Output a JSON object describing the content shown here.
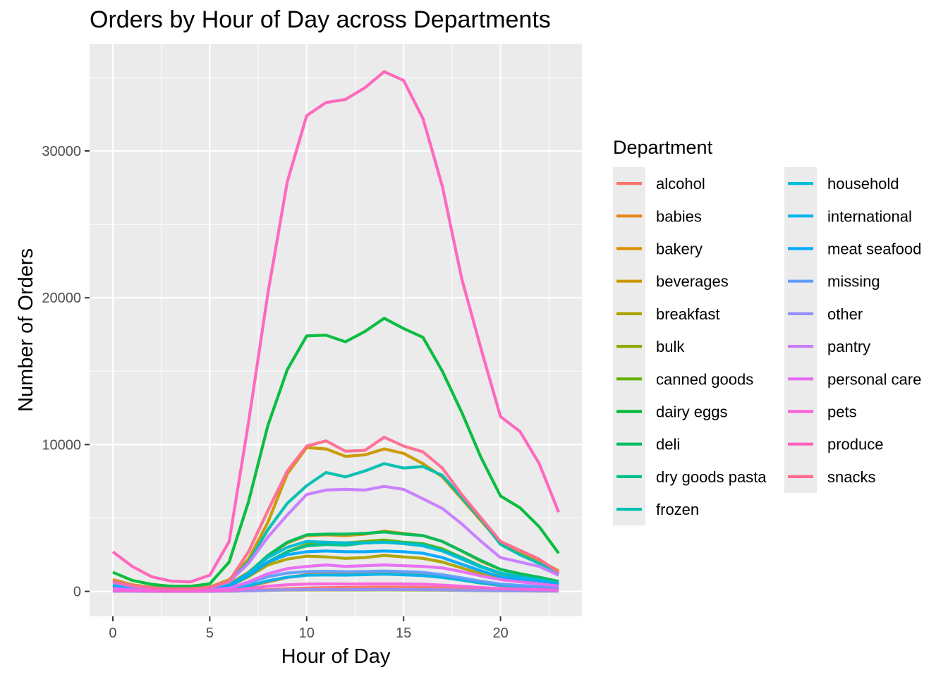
{
  "chart_data": {
    "type": "line",
    "title": "Orders by Hour of Day across Departments",
    "xlabel": "Hour of Day",
    "ylabel": "Number of Orders",
    "xlim": [
      -1.2,
      24.2
    ],
    "ylim": [
      -1700,
      37300
    ],
    "x_ticks": [
      0,
      5,
      10,
      15,
      20
    ],
    "y_ticks": [
      0,
      10000,
      20000,
      30000
    ],
    "x_tick_labels": [
      "0",
      "5",
      "10",
      "15",
      "20"
    ],
    "y_tick_labels": [
      "0",
      "10000",
      "20000",
      "30000"
    ],
    "grid": true,
    "legend_title": "Department",
    "legend_position": "right",
    "x": [
      0,
      1,
      2,
      3,
      4,
      5,
      6,
      7,
      8,
      9,
      10,
      11,
      12,
      13,
      14,
      15,
      16,
      17,
      18,
      19,
      20,
      21,
      22,
      23
    ],
    "series": [
      {
        "name": "alcohol",
        "color": "#F8766D",
        "values": [
          50,
          30,
          20,
          15,
          15,
          20,
          30,
          60,
          120,
          180,
          230,
          260,
          270,
          290,
          300,
          290,
          270,
          240,
          200,
          160,
          120,
          100,
          80,
          60
        ]
      },
      {
        "name": "babies",
        "color": "#E7861B",
        "values": [
          150,
          90,
          60,
          40,
          40,
          50,
          120,
          330,
          650,
          950,
          1150,
          1200,
          1200,
          1210,
          1230,
          1200,
          1130,
          980,
          780,
          560,
          400,
          320,
          260,
          180
        ]
      },
      {
        "name": "bakery",
        "color": "#DB8E00",
        "values": [
          500,
          280,
          180,
          130,
          130,
          200,
          500,
          1300,
          2400,
          3300,
          3800,
          3850,
          3800,
          3900,
          4100,
          3950,
          3800,
          3400,
          2750,
          2050,
          1500,
          1200,
          950,
          650
        ]
      },
      {
        "name": "beverages",
        "color": "#C99800",
        "values": [
          800,
          450,
          280,
          200,
          190,
          300,
          800,
          2200,
          4700,
          8000,
          9800,
          9700,
          9200,
          9300,
          9700,
          9400,
          8700,
          7800,
          6300,
          4800,
          3300,
          2600,
          2100,
          1400
        ]
      },
      {
        "name": "breakfast",
        "color": "#AEA200",
        "values": [
          330,
          190,
          120,
          90,
          90,
          140,
          350,
          1000,
          1800,
          2200,
          2400,
          2350,
          2250,
          2300,
          2450,
          2350,
          2250,
          2000,
          1600,
          1200,
          900,
          730,
          590,
          400
        ]
      },
      {
        "name": "bulk",
        "color": "#8FAA00",
        "values": [
          15,
          8,
          5,
          4,
          4,
          6,
          15,
          40,
          70,
          90,
          100,
          100,
          100,
          100,
          105,
          100,
          95,
          85,
          70,
          55,
          40,
          32,
          26,
          18
        ]
      },
      {
        "name": "canned goods",
        "color": "#64B200",
        "values": [
          330,
          190,
          120,
          90,
          90,
          140,
          350,
          1050,
          2000,
          2700,
          3200,
          3300,
          3300,
          3400,
          3500,
          3350,
          3250,
          2900,
          2300,
          1700,
          1200,
          1000,
          800,
          550
        ]
      },
      {
        "name": "dairy eggs",
        "color": "#00BA38",
        "values": [
          1300,
          750,
          480,
          350,
          340,
          520,
          2000,
          6100,
          11300,
          15100,
          17400,
          17450,
          17000,
          17700,
          18600,
          17900,
          17300,
          15000,
          12200,
          9100,
          6500,
          5700,
          4400,
          2600
        ]
      },
      {
        "name": "deli",
        "color": "#00BD5C",
        "values": [
          400,
          230,
          150,
          110,
          110,
          170,
          430,
          1250,
          2450,
          3350,
          3850,
          3900,
          3900,
          3950,
          4050,
          3900,
          3800,
          3400,
          2750,
          2100,
          1500,
          1200,
          960,
          680
        ]
      },
      {
        "name": "dry goods pasta",
        "color": "#00C08B",
        "values": [
          330,
          190,
          120,
          90,
          90,
          140,
          350,
          1050,
          2000,
          2700,
          3100,
          3200,
          3150,
          3300,
          3350,
          3300,
          3200,
          2800,
          2300,
          1700,
          1250,
          1000,
          800,
          550
        ]
      },
      {
        "name": "frozen",
        "color": "#00BFB0",
        "values": [
          700,
          400,
          250,
          180,
          180,
          270,
          690,
          2000,
          4200,
          6000,
          7200,
          8100,
          7800,
          8200,
          8700,
          8400,
          8500,
          7900,
          6400,
          4900,
          3200,
          2500,
          1900,
          1200
        ]
      },
      {
        "name": "household",
        "color": "#00BCD6",
        "values": [
          400,
          230,
          150,
          110,
          110,
          170,
          430,
          1250,
          2300,
          3000,
          3400,
          3350,
          3300,
          3300,
          3350,
          3250,
          3100,
          2750,
          2200,
          1650,
          1250,
          1000,
          800,
          560
        ]
      },
      {
        "name": "international",
        "color": "#00B4EF",
        "values": [
          120,
          70,
          45,
          33,
          33,
          50,
          130,
          380,
          720,
          960,
          1100,
          1120,
          1110,
          1140,
          1170,
          1130,
          1080,
          950,
          770,
          570,
          420,
          340,
          270,
          190
        ]
      },
      {
        "name": "meat seafood",
        "color": "#00A9FF",
        "values": [
          350,
          200,
          130,
          95,
          95,
          150,
          370,
          1100,
          2000,
          2500,
          2700,
          2750,
          2700,
          2700,
          2750,
          2700,
          2600,
          2300,
          1850,
          1400,
          1000,
          820,
          660,
          460
        ]
      },
      {
        "name": "missing",
        "color": "#619CFF",
        "values": [
          180,
          100,
          65,
          48,
          48,
          75,
          190,
          560,
          1000,
          1250,
          1350,
          1370,
          1340,
          1360,
          1390,
          1350,
          1290,
          1140,
          920,
          690,
          500,
          410,
          330,
          230
        ]
      },
      {
        "name": "other",
        "color": "#9590FF",
        "values": [
          15,
          8,
          5,
          4,
          4,
          6,
          15,
          40,
          80,
          110,
          125,
          125,
          120,
          125,
          130,
          125,
          120,
          105,
          85,
          65,
          48,
          38,
          31,
          22
        ]
      },
      {
        "name": "pantry",
        "color": "#C77CFF",
        "values": [
          600,
          340,
          220,
          160,
          160,
          240,
          650,
          1900,
          3700,
          5200,
          6600,
          6900,
          6950,
          6900,
          7150,
          6950,
          6300,
          5650,
          4600,
          3400,
          2300,
          2000,
          1700,
          1100
        ]
      },
      {
        "name": "personal care",
        "color": "#E76BF3",
        "values": [
          200,
          115,
          75,
          55,
          55,
          85,
          220,
          650,
          1200,
          1550,
          1700,
          1800,
          1700,
          1750,
          1800,
          1750,
          1700,
          1600,
          1350,
          1050,
          800,
          650,
          520,
          370
        ]
      },
      {
        "name": "pets",
        "color": "#FA62DB",
        "values": [
          60,
          35,
          22,
          16,
          16,
          25,
          65,
          190,
          350,
          450,
          500,
          510,
          500,
          510,
          520,
          505,
          485,
          430,
          350,
          260,
          190,
          155,
          125,
          88
        ]
      },
      {
        "name": "produce",
        "color": "#FF62BC",
        "values": [
          2700,
          1700,
          1000,
          700,
          650,
          1100,
          3400,
          11500,
          20300,
          27900,
          32400,
          33300,
          33500,
          34300,
          35400,
          34800,
          32200,
          27600,
          21300,
          16500,
          11900,
          10900,
          8700,
          5400
        ]
      },
      {
        "name": "snacks",
        "color": "#FF6C91",
        "values": [
          700,
          400,
          250,
          180,
          180,
          280,
          700,
          2700,
          5500,
          8200,
          9900,
          10250,
          9550,
          9600,
          10500,
          9900,
          9500,
          8400,
          6600,
          5000,
          3400,
          2800,
          2200,
          1300
        ]
      }
    ]
  }
}
